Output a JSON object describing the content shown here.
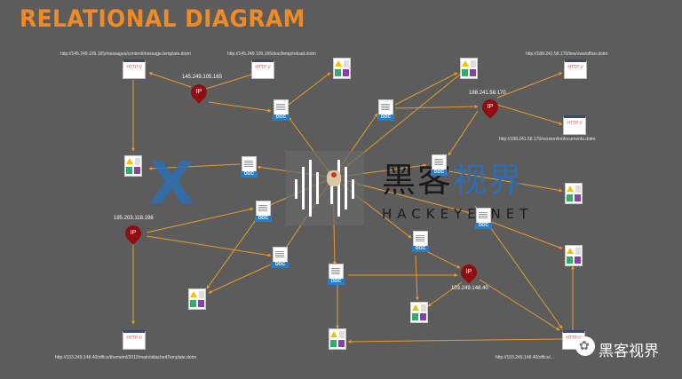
{
  "title": "RELATIONAL DIAGRAM",
  "urls": {
    "u1": "http://145.249.105.165/messages/content/message.template.dotm",
    "u2": "http://145.249.105.165/doc/temp/reload.dotm",
    "u3": "http://188.241.58.170/live/owa/office.dotm",
    "u4": "http://188.241.58.170/version/in/documents.dotm",
    "u5": "http://103.249.148.40/office/thememl/2012/main/attachedTemplate.dotm",
    "u6": "http://103.249.148.40/office/..."
  },
  "ips": {
    "ip1": "145.249.105.165",
    "ip2": "188.241.58.170",
    "ip3": "185.203.118.198",
    "ip4": "103.249.148.40"
  },
  "http_label": "HTTP://",
  "doc_label": "DOC",
  "pin_label": "IP",
  "watermark": {
    "cn_black": "黑客",
    "cn_blue": "视界",
    "en": "HACKEYE.NET"
  },
  "badge_text": "黑客视界"
}
